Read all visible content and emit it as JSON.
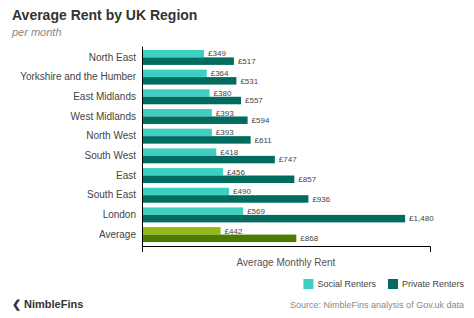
{
  "chart_data": {
    "type": "bar",
    "orientation": "horizontal",
    "title": "Average Rent by UK Region",
    "subtitle": "per month",
    "x_label": "Average Monthly Rent",
    "categories": [
      "Average",
      "London",
      "South East",
      "East",
      "South West",
      "North West",
      "West Midlands",
      "East Midlands",
      "Yorkshire and the Humber",
      "North East"
    ],
    "series": [
      {
        "name": "Social Renters",
        "color": "#3dcfbf",
        "colors": [
          "#8fbc14",
          "#3dcfbf",
          "#3dcfbf",
          "#3dcfbf",
          "#3dcfbf",
          "#3dcfbf",
          "#3dcfbf",
          "#3dcfbf",
          "#3dcfbf",
          "#3dcfbf"
        ],
        "values": [
          442,
          569,
          490,
          456,
          418,
          393,
          393,
          380,
          364,
          349
        ],
        "value_labels": [
          "£442",
          "£569",
          "£490",
          "£456",
          "£418",
          "£393",
          "£393",
          "£380",
          "£364",
          "£349"
        ]
      },
      {
        "name": "Private Renters",
        "color": "#006b5e",
        "colors": [
          "#4f7a00",
          "#006b5e",
          "#006b5e",
          "#006b5e",
          "#006b5e",
          "#006b5e",
          "#006b5e",
          "#006b5e",
          "#006b5e",
          "#006b5e"
        ],
        "values": [
          868,
          1480,
          936,
          857,
          747,
          611,
          594,
          557,
          531,
          517
        ],
        "value_labels": [
          "£868",
          "£1,480",
          "£936",
          "£857",
          "£747",
          "£611",
          "£594",
          "£557",
          "£531",
          "£517"
        ]
      }
    ],
    "xlim": [
      0,
      1620
    ],
    "xticks": [],
    "tick_labels": "y",
    "grid": false,
    "data_labels": true,
    "legend": "lower right",
    "annotations": [
      "Source: NimbleFins analysis of Gov.uk data",
      "❮ NimbleFins"
    ]
  }
}
